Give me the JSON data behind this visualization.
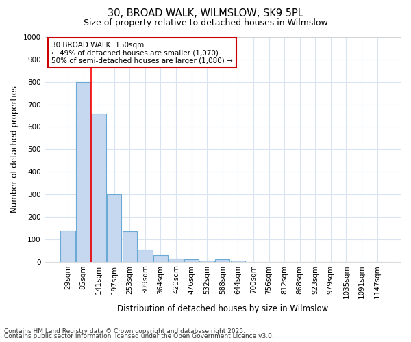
{
  "title": "30, BROAD WALK, WILMSLOW, SK9 5PL",
  "subtitle": "Size of property relative to detached houses in Wilmslow",
  "xlabel": "Distribution of detached houses by size in Wilmslow",
  "ylabel": "Number of detached properties",
  "bar_labels": [
    "29sqm",
    "85sqm",
    "141sqm",
    "197sqm",
    "253sqm",
    "309sqm",
    "364sqm",
    "420sqm",
    "476sqm",
    "532sqm",
    "588sqm",
    "644sqm",
    "700sqm",
    "756sqm",
    "812sqm",
    "868sqm",
    "923sqm",
    "979sqm",
    "1035sqm",
    "1091sqm",
    "1147sqm"
  ],
  "bar_values": [
    140,
    800,
    660,
    300,
    135,
    52,
    30,
    15,
    10,
    5,
    10,
    5,
    0,
    0,
    0,
    0,
    0,
    0,
    0,
    0,
    0
  ],
  "bar_color": "#c5d8f0",
  "bar_edge_color": "#6aaad4",
  "red_line_x": 1.5,
  "annotation_text": "30 BROAD WALK: 150sqm\n← 49% of detached houses are smaller (1,070)\n50% of semi-detached houses are larger (1,080) →",
  "annotation_box_color": "#ffffff",
  "annotation_box_edge": "#cc0000",
  "ylim": [
    0,
    1000
  ],
  "yticks": [
    0,
    100,
    200,
    300,
    400,
    500,
    600,
    700,
    800,
    900,
    1000
  ],
  "footer1": "Contains HM Land Registry data © Crown copyright and database right 2025.",
  "footer2": "Contains public sector information licensed under the Open Government Licence v3.0.",
  "background_color": "#ffffff",
  "plot_bg_color": "#ffffff",
  "grid_color": "#d8e4f0",
  "title_fontsize": 10.5,
  "subtitle_fontsize": 9,
  "axis_label_fontsize": 8.5,
  "tick_fontsize": 7.5,
  "footer_fontsize": 6.5,
  "annotation_fontsize": 7.5
}
